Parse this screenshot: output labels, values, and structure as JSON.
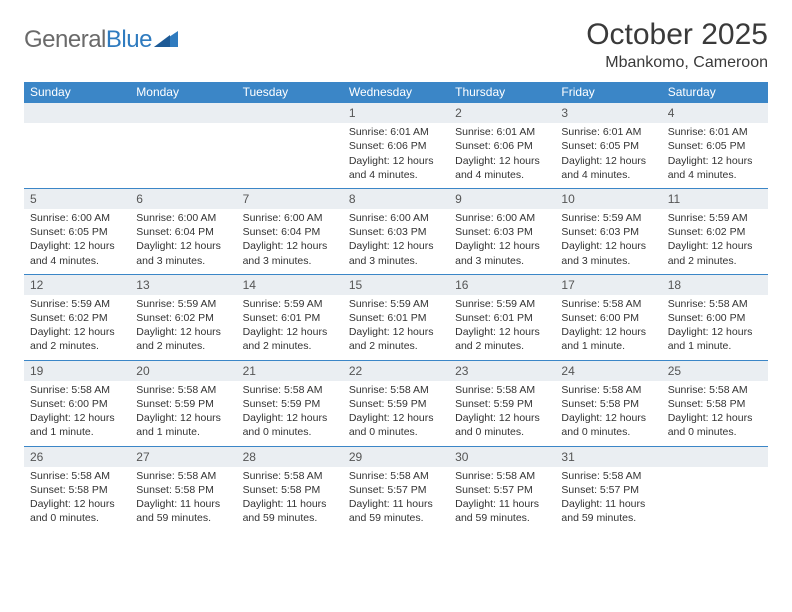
{
  "logo": {
    "general": "General",
    "blue": "Blue"
  },
  "title": "October 2025",
  "location": "Mbankomo, Cameroon",
  "colors": {
    "header_bg": "#3b86c7",
    "header_text": "#ffffff",
    "row_rule": "#3b86c7",
    "daynum_bg": "#eaeef2",
    "body_text": "#333333",
    "logo_gray": "#6a6a6a",
    "logo_blue": "#2f7bbf"
  },
  "weekdays": [
    "Sunday",
    "Monday",
    "Tuesday",
    "Wednesday",
    "Thursday",
    "Friday",
    "Saturday"
  ],
  "weeks": [
    [
      {
        "n": "",
        "sr": "",
        "ss": "",
        "dl": ""
      },
      {
        "n": "",
        "sr": "",
        "ss": "",
        "dl": ""
      },
      {
        "n": "",
        "sr": "",
        "ss": "",
        "dl": ""
      },
      {
        "n": "1",
        "sr": "Sunrise: 6:01 AM",
        "ss": "Sunset: 6:06 PM",
        "dl": "Daylight: 12 hours and 4 minutes."
      },
      {
        "n": "2",
        "sr": "Sunrise: 6:01 AM",
        "ss": "Sunset: 6:06 PM",
        "dl": "Daylight: 12 hours and 4 minutes."
      },
      {
        "n": "3",
        "sr": "Sunrise: 6:01 AM",
        "ss": "Sunset: 6:05 PM",
        "dl": "Daylight: 12 hours and 4 minutes."
      },
      {
        "n": "4",
        "sr": "Sunrise: 6:01 AM",
        "ss": "Sunset: 6:05 PM",
        "dl": "Daylight: 12 hours and 4 minutes."
      }
    ],
    [
      {
        "n": "5",
        "sr": "Sunrise: 6:00 AM",
        "ss": "Sunset: 6:05 PM",
        "dl": "Daylight: 12 hours and 4 minutes."
      },
      {
        "n": "6",
        "sr": "Sunrise: 6:00 AM",
        "ss": "Sunset: 6:04 PM",
        "dl": "Daylight: 12 hours and 3 minutes."
      },
      {
        "n": "7",
        "sr": "Sunrise: 6:00 AM",
        "ss": "Sunset: 6:04 PM",
        "dl": "Daylight: 12 hours and 3 minutes."
      },
      {
        "n": "8",
        "sr": "Sunrise: 6:00 AM",
        "ss": "Sunset: 6:03 PM",
        "dl": "Daylight: 12 hours and 3 minutes."
      },
      {
        "n": "9",
        "sr": "Sunrise: 6:00 AM",
        "ss": "Sunset: 6:03 PM",
        "dl": "Daylight: 12 hours and 3 minutes."
      },
      {
        "n": "10",
        "sr": "Sunrise: 5:59 AM",
        "ss": "Sunset: 6:03 PM",
        "dl": "Daylight: 12 hours and 3 minutes."
      },
      {
        "n": "11",
        "sr": "Sunrise: 5:59 AM",
        "ss": "Sunset: 6:02 PM",
        "dl": "Daylight: 12 hours and 2 minutes."
      }
    ],
    [
      {
        "n": "12",
        "sr": "Sunrise: 5:59 AM",
        "ss": "Sunset: 6:02 PM",
        "dl": "Daylight: 12 hours and 2 minutes."
      },
      {
        "n": "13",
        "sr": "Sunrise: 5:59 AM",
        "ss": "Sunset: 6:02 PM",
        "dl": "Daylight: 12 hours and 2 minutes."
      },
      {
        "n": "14",
        "sr": "Sunrise: 5:59 AM",
        "ss": "Sunset: 6:01 PM",
        "dl": "Daylight: 12 hours and 2 minutes."
      },
      {
        "n": "15",
        "sr": "Sunrise: 5:59 AM",
        "ss": "Sunset: 6:01 PM",
        "dl": "Daylight: 12 hours and 2 minutes."
      },
      {
        "n": "16",
        "sr": "Sunrise: 5:59 AM",
        "ss": "Sunset: 6:01 PM",
        "dl": "Daylight: 12 hours and 2 minutes."
      },
      {
        "n": "17",
        "sr": "Sunrise: 5:58 AM",
        "ss": "Sunset: 6:00 PM",
        "dl": "Daylight: 12 hours and 1 minute."
      },
      {
        "n": "18",
        "sr": "Sunrise: 5:58 AM",
        "ss": "Sunset: 6:00 PM",
        "dl": "Daylight: 12 hours and 1 minute."
      }
    ],
    [
      {
        "n": "19",
        "sr": "Sunrise: 5:58 AM",
        "ss": "Sunset: 6:00 PM",
        "dl": "Daylight: 12 hours and 1 minute."
      },
      {
        "n": "20",
        "sr": "Sunrise: 5:58 AM",
        "ss": "Sunset: 5:59 PM",
        "dl": "Daylight: 12 hours and 1 minute."
      },
      {
        "n": "21",
        "sr": "Sunrise: 5:58 AM",
        "ss": "Sunset: 5:59 PM",
        "dl": "Daylight: 12 hours and 0 minutes."
      },
      {
        "n": "22",
        "sr": "Sunrise: 5:58 AM",
        "ss": "Sunset: 5:59 PM",
        "dl": "Daylight: 12 hours and 0 minutes."
      },
      {
        "n": "23",
        "sr": "Sunrise: 5:58 AM",
        "ss": "Sunset: 5:59 PM",
        "dl": "Daylight: 12 hours and 0 minutes."
      },
      {
        "n": "24",
        "sr": "Sunrise: 5:58 AM",
        "ss": "Sunset: 5:58 PM",
        "dl": "Daylight: 12 hours and 0 minutes."
      },
      {
        "n": "25",
        "sr": "Sunrise: 5:58 AM",
        "ss": "Sunset: 5:58 PM",
        "dl": "Daylight: 12 hours and 0 minutes."
      }
    ],
    [
      {
        "n": "26",
        "sr": "Sunrise: 5:58 AM",
        "ss": "Sunset: 5:58 PM",
        "dl": "Daylight: 12 hours and 0 minutes."
      },
      {
        "n": "27",
        "sr": "Sunrise: 5:58 AM",
        "ss": "Sunset: 5:58 PM",
        "dl": "Daylight: 11 hours and 59 minutes."
      },
      {
        "n": "28",
        "sr": "Sunrise: 5:58 AM",
        "ss": "Sunset: 5:58 PM",
        "dl": "Daylight: 11 hours and 59 minutes."
      },
      {
        "n": "29",
        "sr": "Sunrise: 5:58 AM",
        "ss": "Sunset: 5:57 PM",
        "dl": "Daylight: 11 hours and 59 minutes."
      },
      {
        "n": "30",
        "sr": "Sunrise: 5:58 AM",
        "ss": "Sunset: 5:57 PM",
        "dl": "Daylight: 11 hours and 59 minutes."
      },
      {
        "n": "31",
        "sr": "Sunrise: 5:58 AM",
        "ss": "Sunset: 5:57 PM",
        "dl": "Daylight: 11 hours and 59 minutes."
      },
      {
        "n": "",
        "sr": "",
        "ss": "",
        "dl": ""
      }
    ]
  ]
}
